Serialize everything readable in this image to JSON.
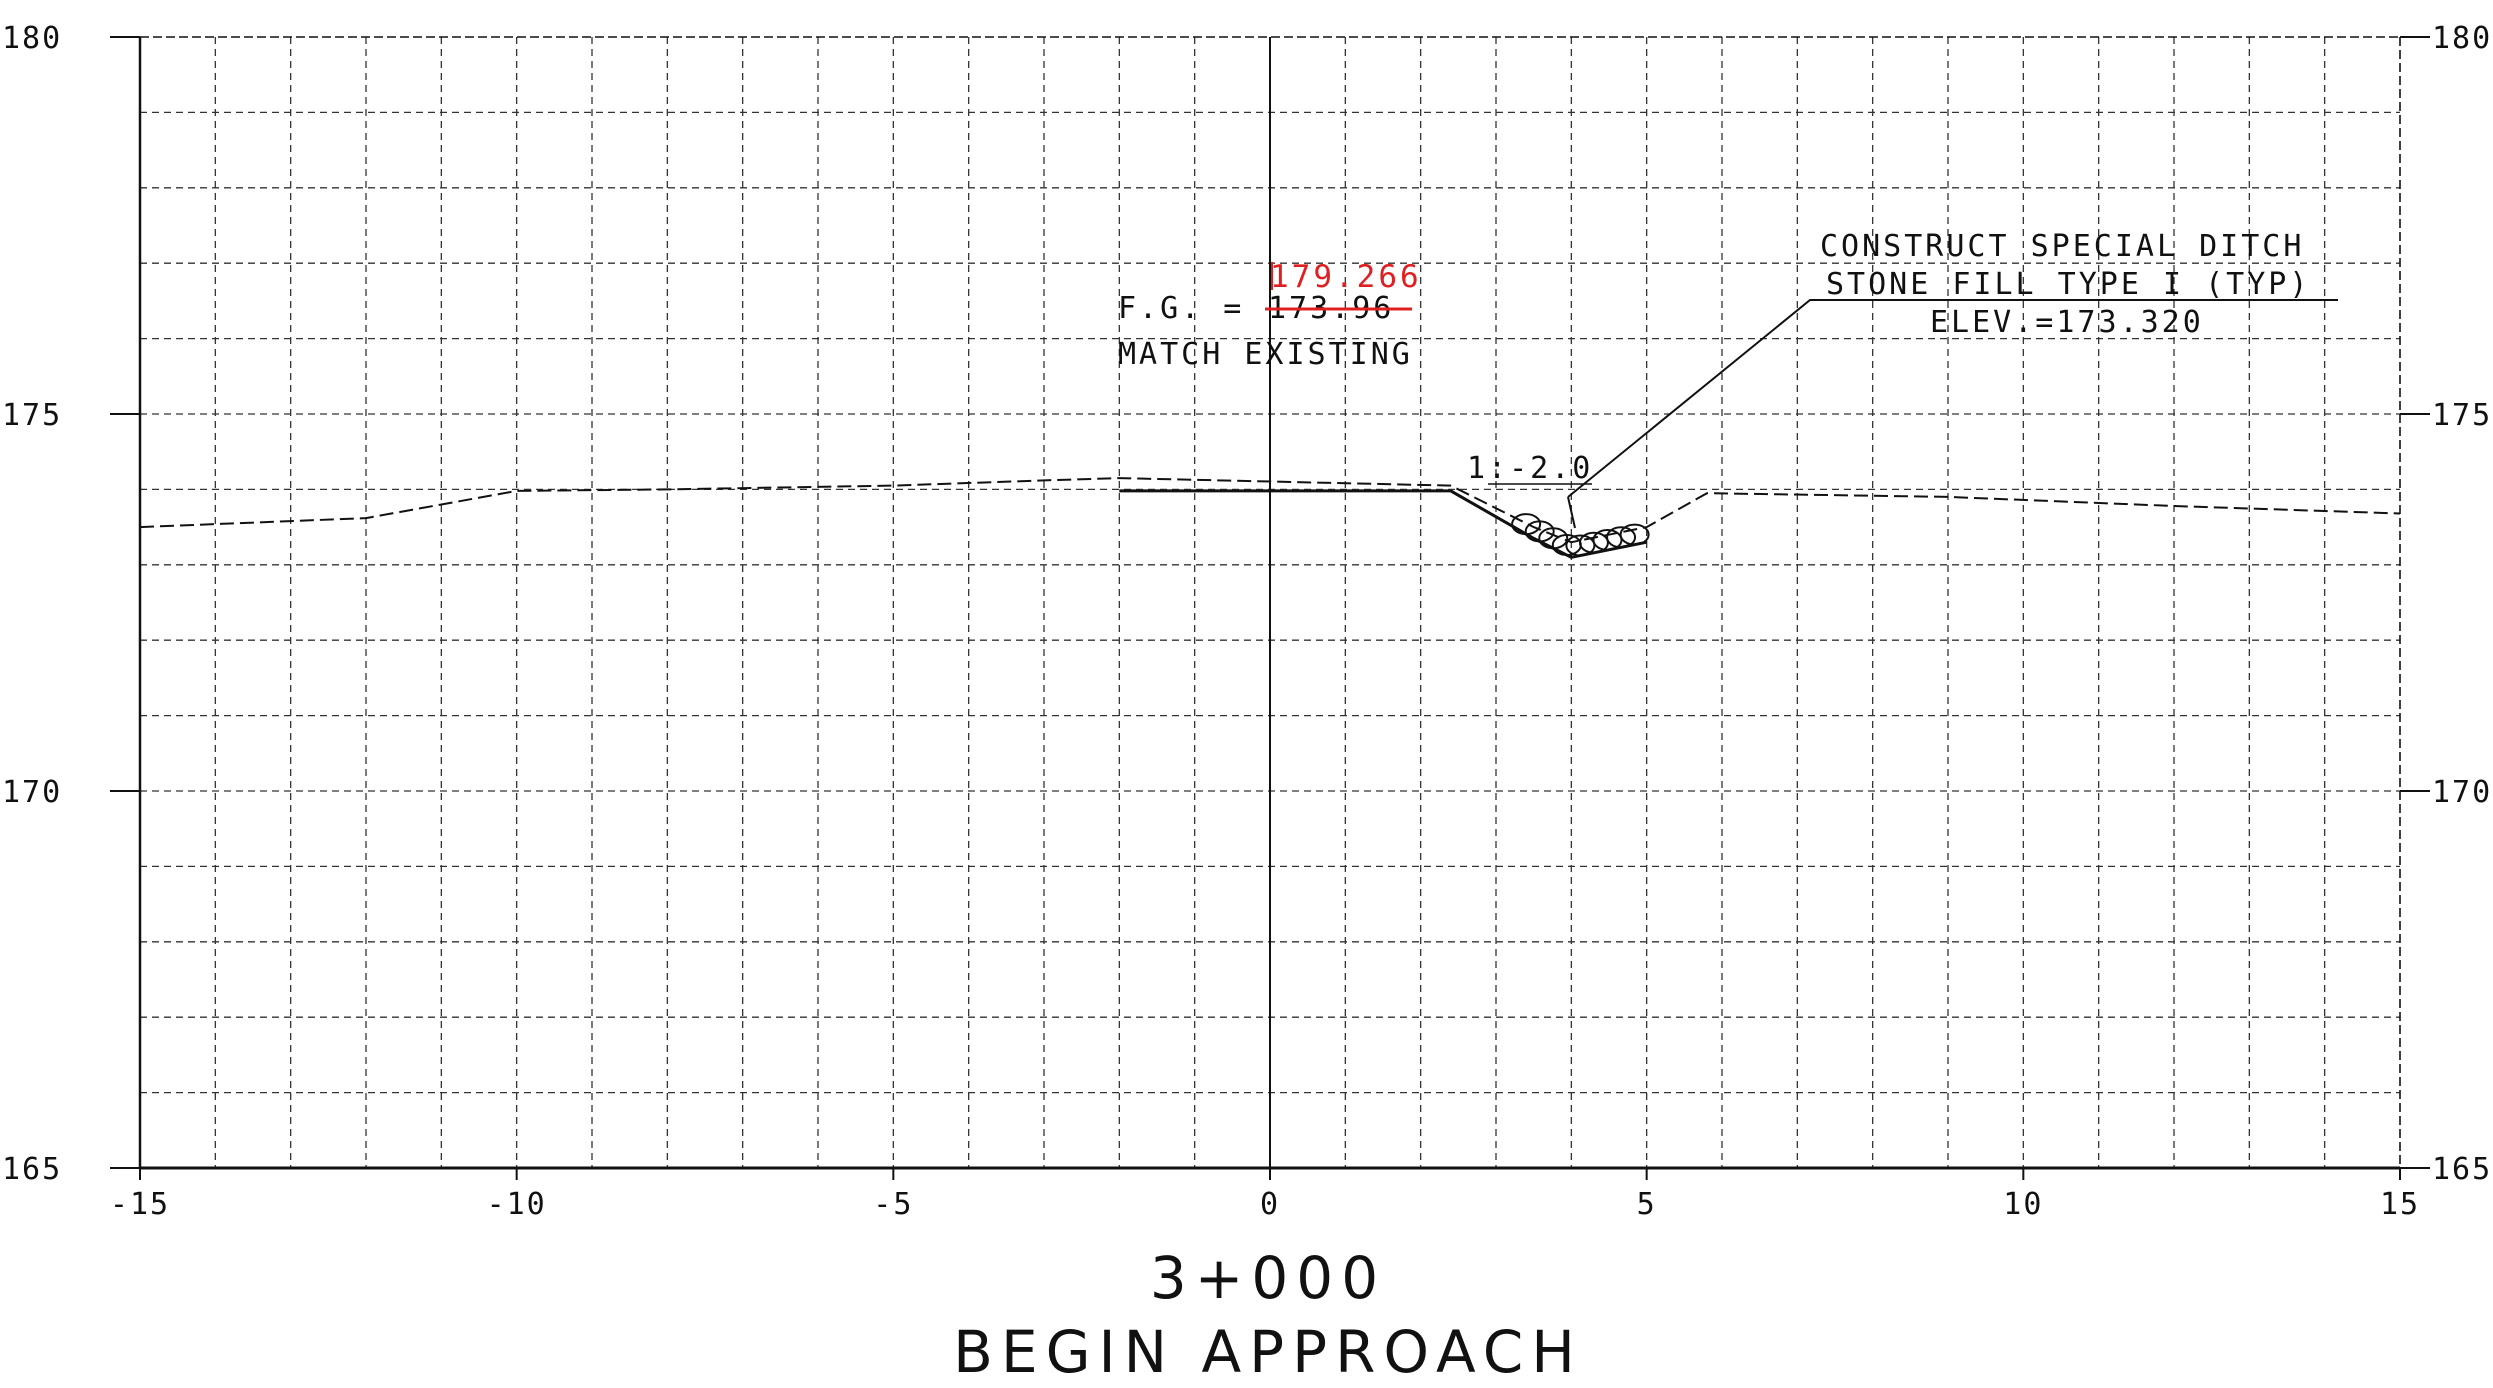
{
  "x_axis": {
    "min": -15,
    "max": 15,
    "ticks": [
      {
        "value": -15,
        "label": "-15"
      },
      {
        "value": -10,
        "label": "-10"
      },
      {
        "value": -5,
        "label": "-5"
      },
      {
        "value": 0,
        "label": "0"
      },
      {
        "value": 5,
        "label": "5"
      },
      {
        "value": 10,
        "label": "10"
      },
      {
        "value": 15,
        "label": "15"
      }
    ]
  },
  "y_axis": {
    "min": 165,
    "max": 180,
    "ticks": [
      {
        "value": 165,
        "label": "165"
      },
      {
        "value": 170,
        "label": "170"
      },
      {
        "value": 175,
        "label": "175"
      },
      {
        "value": 180,
        "label": "180"
      }
    ]
  },
  "grid": {
    "major_x_step": 1,
    "major_y_step": 1,
    "style": "dashed"
  },
  "existing_ground": [
    [
      -15,
      173.5
    ],
    [
      -12,
      173.62
    ],
    [
      -10,
      173.98
    ],
    [
      -8,
      174.0
    ],
    [
      -5,
      174.05
    ],
    [
      -3,
      174.12
    ],
    [
      -2,
      174.15
    ],
    [
      2.4,
      174.05
    ],
    [
      3.5,
      173.5
    ],
    [
      4,
      173.3
    ],
    [
      5,
      173.5
    ],
    [
      5.8,
      173.95
    ],
    [
      9,
      173.9
    ],
    [
      12,
      173.78
    ],
    [
      15,
      173.68
    ]
  ],
  "proposed_grade": [
    [
      -2,
      173.98
    ],
    [
      2.4,
      173.98
    ],
    [
      3.5,
      173.35
    ],
    [
      4,
      173.1
    ],
    [
      5,
      173.3
    ]
  ],
  "stone_fill_x_range": [
    3.4,
    4.9
  ],
  "annotations": {
    "fg_label": "F.G. =",
    "fg_old_value": "173.96",
    "fg_new_value": "179.266",
    "match_existing": "MATCH EXISTING",
    "slope_label": "1:-2.0",
    "ditch_line1": "CONSTRUCT SPECIAL DITCH",
    "ditch_line2": "STONE FILL TYPE I (TYP)",
    "ditch_line3": "ELEV.=173.320"
  },
  "station": "3+000",
  "section_title": "BEGIN APPROACH",
  "colors": {
    "line": "#111111",
    "grid": "#333333",
    "revision": "#e02020"
  }
}
